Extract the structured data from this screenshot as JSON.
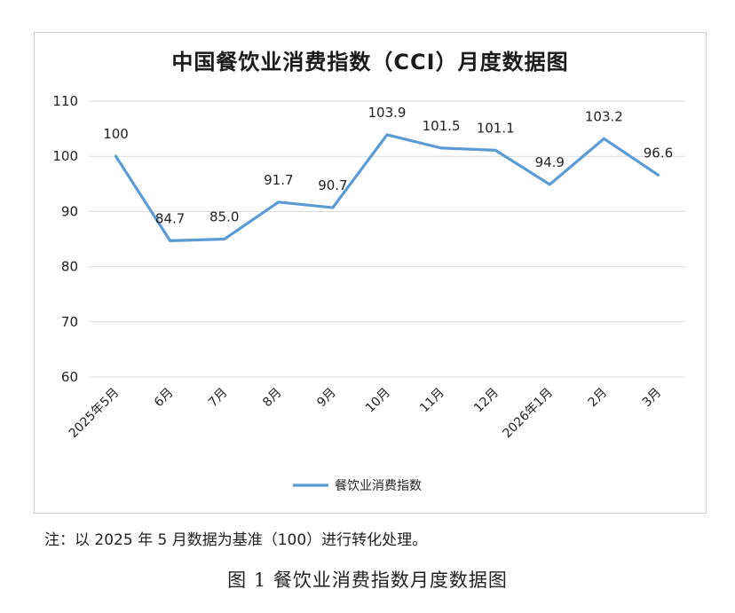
{
  "chart_data": {
    "type": "line",
    "title": "中国餐饮业消费指数（CCI）月度数据图",
    "categories": [
      "2025年5月",
      "6月",
      "7月",
      "8月",
      "9月",
      "10月",
      "11月",
      "12月",
      "2026年1月",
      "2月",
      "3月"
    ],
    "series": [
      {
        "name": "餐饮业消费指数",
        "values": [
          100,
          84.7,
          85.0,
          91.7,
          90.7,
          103.9,
          101.5,
          101.1,
          94.9,
          103.2,
          96.6
        ],
        "labels": [
          "100",
          "84.7",
          "85.0",
          "91.7",
          "90.7",
          "103.9",
          "101.5",
          "101.1",
          "94.9",
          "103.2",
          "96.6"
        ],
        "color": "#5b9bd5"
      }
    ],
    "ylim": [
      60,
      110
    ],
    "yticks": [
      "60",
      "70",
      "80",
      "90",
      "100",
      "110"
    ],
    "grid": true,
    "legend": "bottom"
  },
  "note": "注：以 2025 年 5 月数据为基准（100）进行转化处理。",
  "caption": "图 1 餐饮业消费指数月度数据图"
}
